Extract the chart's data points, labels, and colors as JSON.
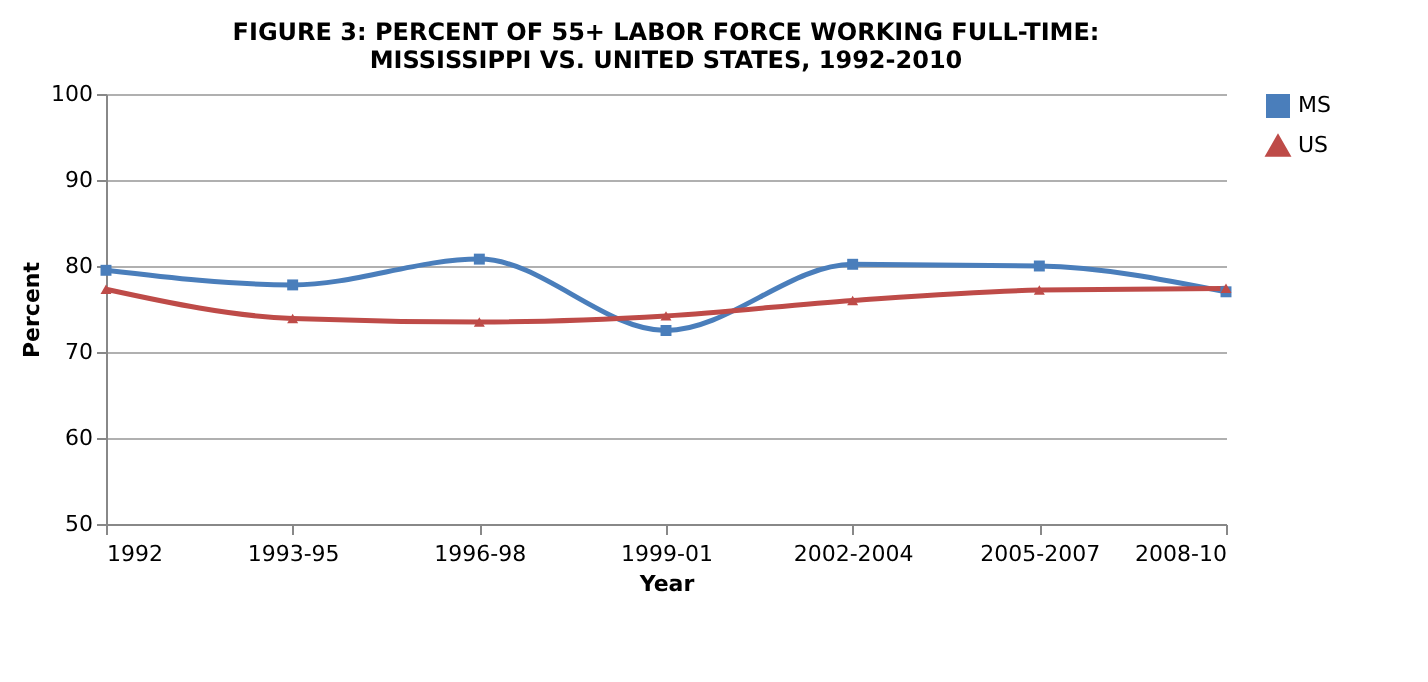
{
  "chart_data": {
    "type": "line",
    "title": [
      "FIGURE 3: PERCENT OF 55+ LABOR FORCE WORKING FULL-TIME:",
      "MISSISSIPPI VS. UNITED STATES, 1992-2010"
    ],
    "xlabel": "Year",
    "ylabel": "Percent",
    "categories": [
      "1992",
      "1993-95",
      "1996-98",
      "1999-01",
      "2002-2004",
      "2005-2007",
      "2008-10"
    ],
    "series": [
      {
        "name": "MS",
        "color": "#4a7ebb",
        "marker": "square",
        "values": [
          79.5,
          77.8,
          80.8,
          72.5,
          80.2,
          80.0,
          77.0
        ]
      },
      {
        "name": "US",
        "color": "#be4b48",
        "marker": "triangle",
        "values": [
          77.3,
          73.9,
          73.5,
          74.2,
          76.0,
          77.2,
          77.4
        ]
      }
    ],
    "ylim": [
      50,
      100
    ],
    "yticks": [
      50,
      60,
      70,
      80,
      90,
      100
    ],
    "grid": "y",
    "legend": "right",
    "line_style": "solid"
  }
}
